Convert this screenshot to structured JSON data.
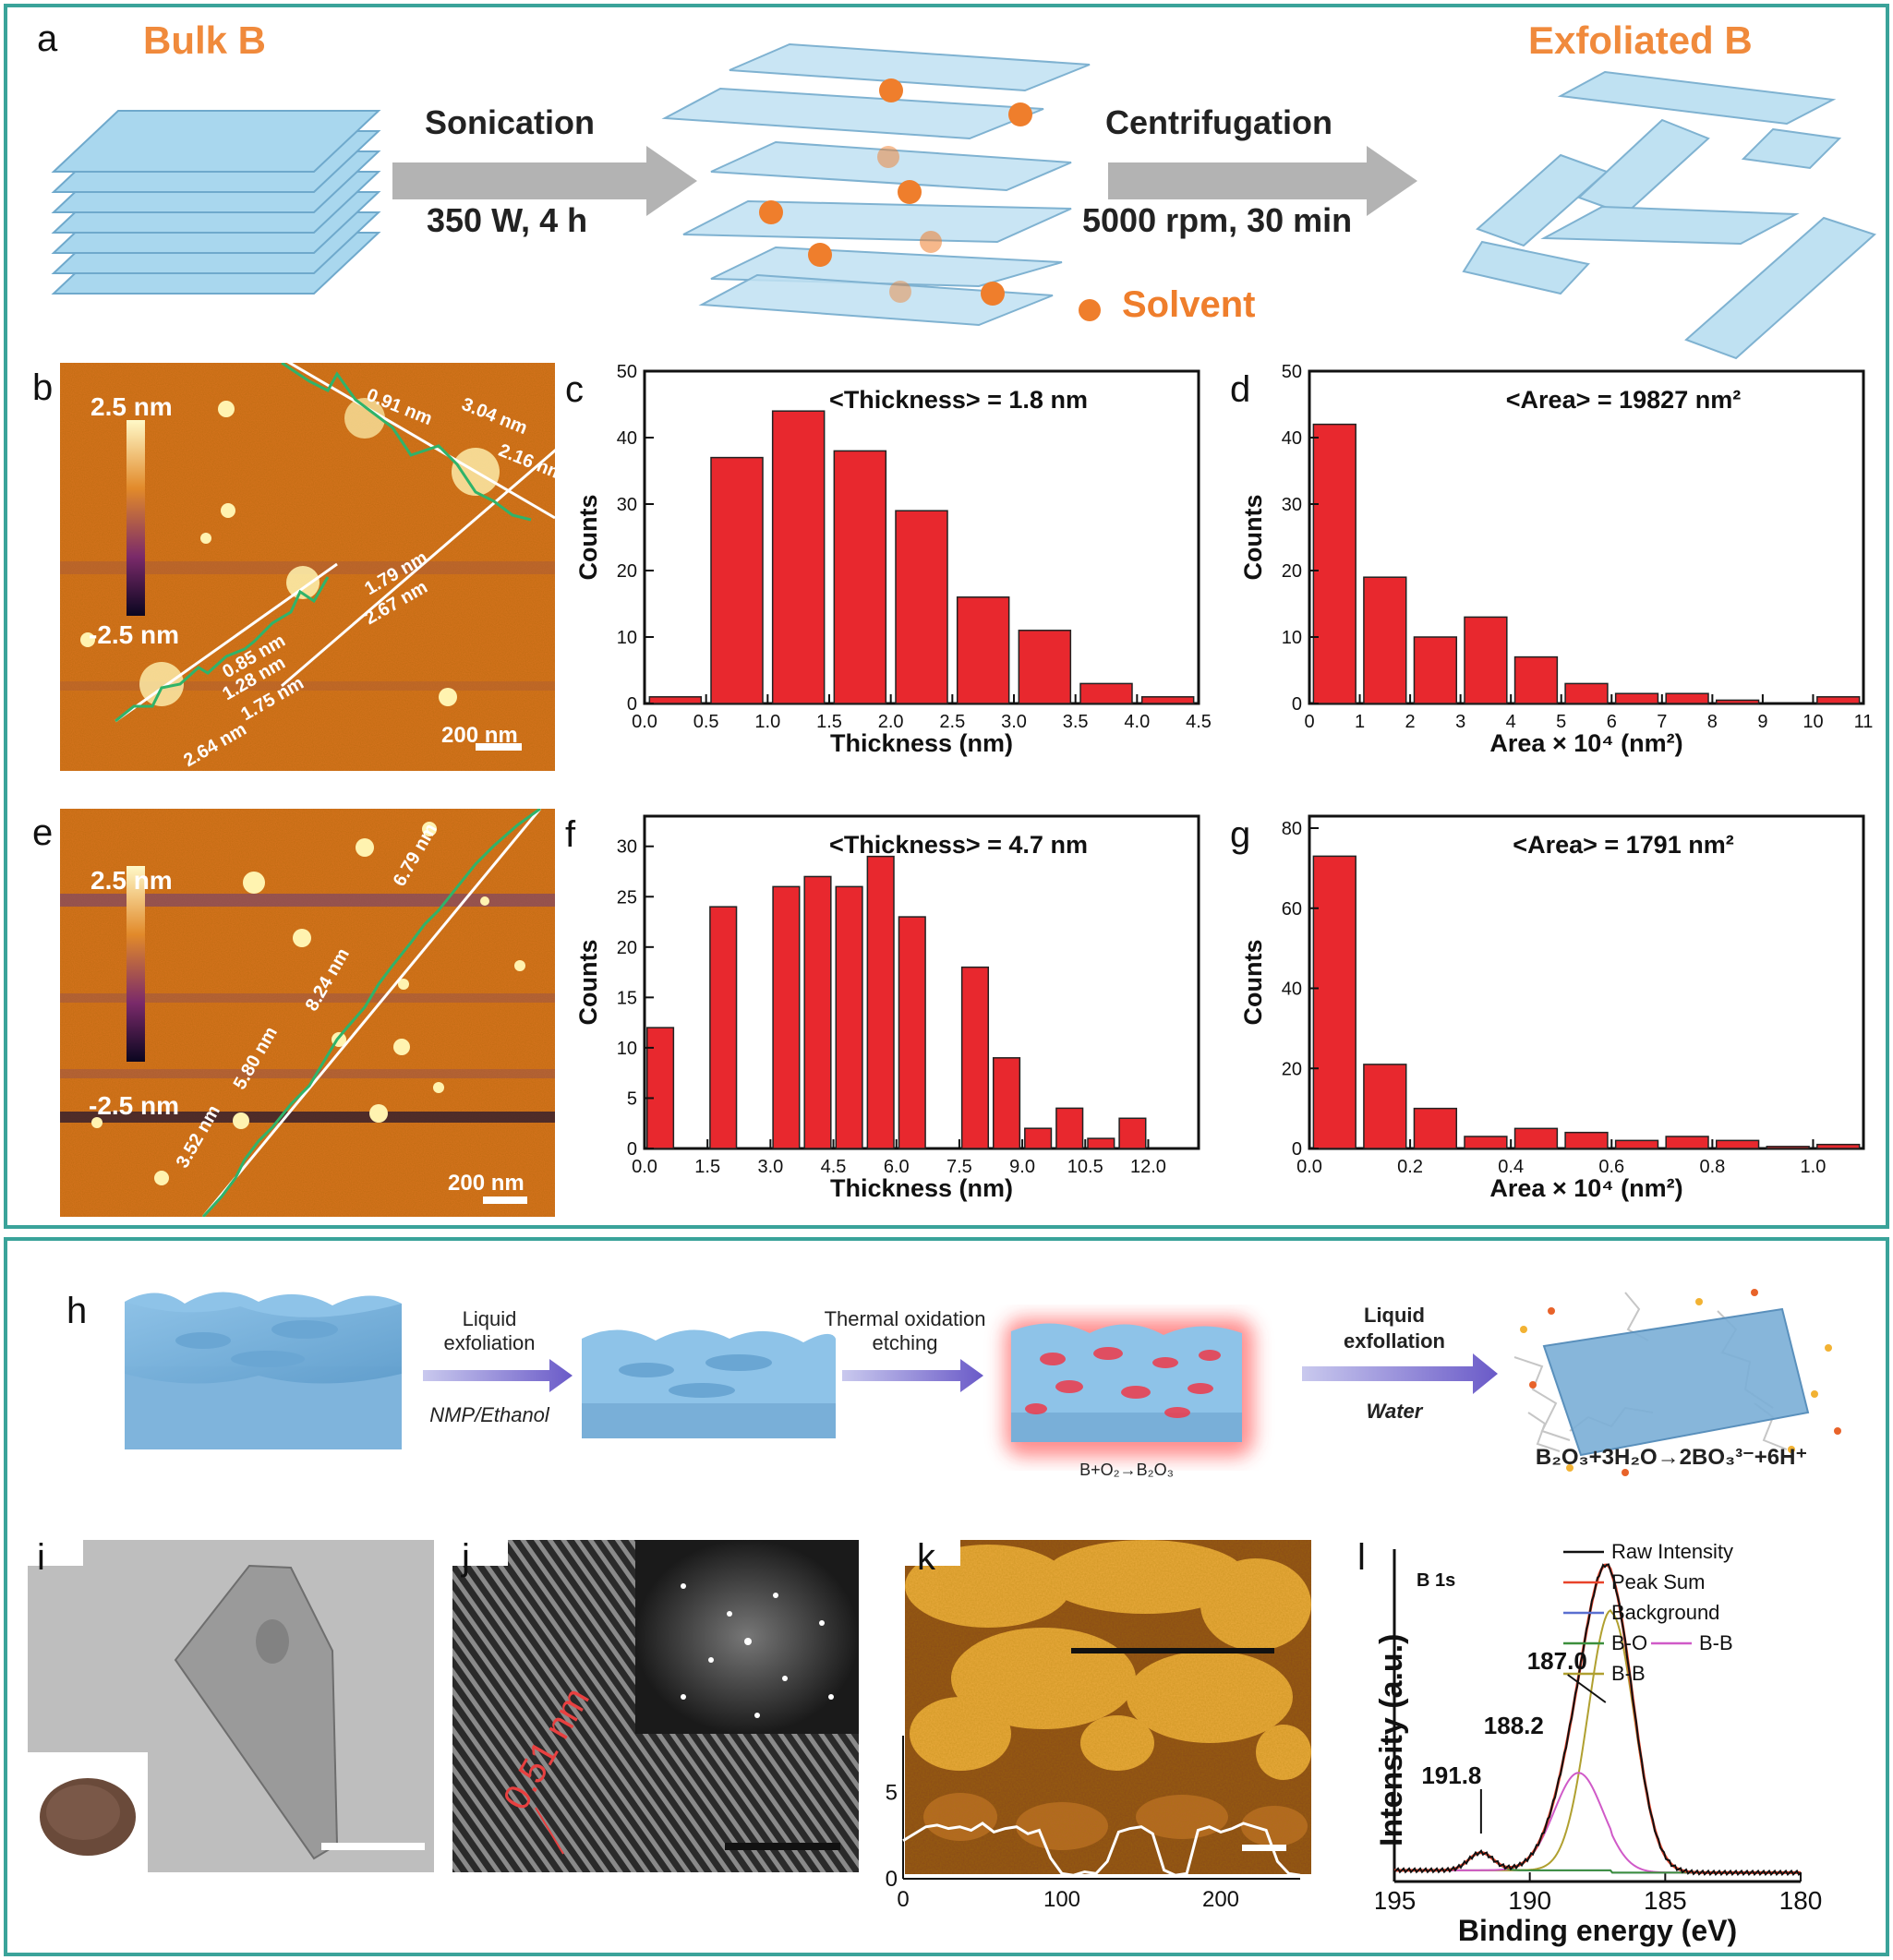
{
  "panel_a": {
    "label": "a",
    "bulk_label": "Bulk B",
    "exfoliated_label": "Exfoliated B",
    "step1_top": "Sonication",
    "step1_bottom": "350 W, 4 h",
    "step2_top": "Centrifugation",
    "step2_bottom": "5000 rpm, 30 min",
    "solvent_label": "Solvent",
    "colors": {
      "sheet": "#a9d7ee",
      "sheet_edge": "#6fa9cc",
      "arrow": "#b3b3b3",
      "dot": "#ef7e2c",
      "title": "#f08a3c"
    }
  },
  "panel_b": {
    "label": "b",
    "scale_top": "2.5 nm",
    "scale_bottom": "-2.5 nm",
    "scalebar": "200 nm",
    "measurements": [
      "0.91 nm",
      "3.04 nm",
      "2.16 nm",
      "1.79 nm",
      "2.67 nm",
      "0.85 nm",
      "1.28 nm",
      "1.75 nm",
      "2.64 nm"
    ]
  },
  "panel_e": {
    "label": "e",
    "scale_top": "2.5 nm",
    "scale_bottom": "-2.5 nm",
    "scalebar": "200 nm",
    "measurements": [
      "6.79 nm",
      "8.24 nm",
      "5.80 nm",
      "3.52 nm"
    ]
  },
  "panel_h": {
    "label": "h",
    "step1_top": "Liquid",
    "step1_top2": "exfoliation",
    "step1_bottom": "NMP/Ethanol",
    "step2_top": "Thermal oxidation",
    "step2_top2": "etching",
    "reaction1": "B+O₂→B₂O₃",
    "step3_top": "Liquid",
    "step3_top2": "exfollation",
    "step3_bottom": "Water",
    "reaction2": "B₂O₃+3H₂O→2BO₃³⁻+6H⁺"
  },
  "panel_i": {
    "label": "i"
  },
  "panel_j": {
    "label": "j",
    "spacing": "0.51 nm"
  },
  "panel_k": {
    "label": "k",
    "y_ticks": [
      "0",
      "5"
    ],
    "x_ticks": [
      "0",
      "100",
      "200"
    ],
    "profile": [
      2.2,
      2.6,
      3.0,
      3.1,
      2.9,
      3.0,
      2.8,
      3.2,
      2.7,
      2.9,
      3.0,
      2.6,
      2.8,
      1.2,
      0.3,
      0.2,
      0.4,
      0.3,
      1.0,
      2.7,
      2.9,
      3.0,
      2.6,
      0.5,
      0.2,
      0.3,
      2.8,
      3.0,
      2.7,
      2.9,
      3.2,
      3.0,
      2.8,
      1.0,
      0.3,
      0.2
    ]
  },
  "chart_data": [
    {
      "id": "c",
      "type": "bar",
      "title": "<Thickness> = 1.8 nm",
      "xlabel": "Thickness (nm)",
      "ylabel": "Counts",
      "x": [
        0.25,
        0.75,
        1.25,
        1.75,
        2.25,
        2.75,
        3.25,
        3.75,
        4.25
      ],
      "values": [
        1,
        37,
        44,
        38,
        29,
        16,
        11,
        3,
        1
      ],
      "xlim": [
        0,
        4.5
      ],
      "ylim": [
        0,
        50
      ],
      "x_ticks": [
        "0.0",
        "0.5",
        "1.0",
        "1.5",
        "2.0",
        "2.5",
        "3.0",
        "3.5",
        "4.0",
        "4.5"
      ],
      "y_ticks": [
        "0",
        "10",
        "20",
        "30",
        "40",
        "50"
      ],
      "color": "#e8282e"
    },
    {
      "id": "d",
      "type": "bar",
      "title": "<Area> = 19827 nm²",
      "xlabel": "Area × 10⁴ (nm²)",
      "ylabel": "Counts",
      "x": [
        0.5,
        1.5,
        2.5,
        3.5,
        4.5,
        5.5,
        6.5,
        7.5,
        8.5,
        9.5,
        10.5
      ],
      "values": [
        42,
        19,
        10,
        13,
        7,
        3,
        1.5,
        1.5,
        0.5,
        0,
        1
      ],
      "xlim": [
        0,
        11
      ],
      "ylim": [
        0,
        50
      ],
      "x_ticks": [
        "0",
        "1",
        "2",
        "3",
        "4",
        "5",
        "6",
        "7",
        "8",
        "9",
        "10",
        "11"
      ],
      "y_ticks": [
        "0",
        "10",
        "20",
        "30",
        "40",
        "50"
      ],
      "color": "#e8282e"
    },
    {
      "id": "f",
      "type": "bar",
      "title": "<Thickness> = 4.7 nm",
      "xlabel": "Thickness (nm)",
      "ylabel": "Counts",
      "x": [
        0.375,
        1.125,
        1.875,
        2.625,
        3.375,
        4.125,
        4.875,
        5.625,
        6.375,
        7.125,
        7.875,
        8.625,
        9.375,
        10.125,
        10.875,
        11.625,
        12.375
      ],
      "values": [
        12,
        0,
        24,
        0,
        26,
        27,
        26,
        29,
        23,
        0,
        18,
        9,
        2,
        4,
        1,
        3,
        0
      ],
      "xlim": [
        0,
        13.2
      ],
      "ylim": [
        0,
        33
      ],
      "x_ticks": [
        "0.0",
        "1.5",
        "3.0",
        "4.5",
        "6.0",
        "7.5",
        "9.0",
        "10.5",
        "12.0"
      ],
      "y_ticks": [
        "0",
        "5",
        "10",
        "15",
        "20",
        "25",
        "30"
      ],
      "color": "#e8282e"
    },
    {
      "id": "g",
      "type": "bar",
      "title": "<Area> = 1791 nm²",
      "xlabel": "Area × 10⁴ (nm²)",
      "ylabel": "Counts",
      "x": [
        0.05,
        0.15,
        0.25,
        0.35,
        0.45,
        0.55,
        0.65,
        0.75,
        0.85,
        0.95,
        1.05
      ],
      "values": [
        73,
        21,
        10,
        3,
        5,
        4,
        2,
        3,
        2,
        0.5,
        1
      ],
      "xlim": [
        0,
        1.1
      ],
      "ylim": [
        0,
        83
      ],
      "x_ticks": [
        "0.0",
        "0.2",
        "0.4",
        "0.6",
        "0.8",
        "1.0"
      ],
      "y_ticks": [
        "0",
        "20",
        "40",
        "60",
        "80"
      ],
      "color": "#e8282e"
    },
    {
      "id": "l",
      "type": "line",
      "title": "B 1s",
      "xlabel": "Binding energy (eV)",
      "ylabel": "Intensity (a.u.)",
      "xlim": [
        195,
        180
      ],
      "x_ticks": [
        "195",
        "190",
        "185",
        "180"
      ],
      "legend": [
        "Raw Intensity",
        "Peak Sum",
        "Background",
        "B-O",
        "B-B",
        "B-B"
      ],
      "legend_colors": [
        "#111111",
        "#e8432a",
        "#5a6fd0",
        "#3c8f3c",
        "#d05ac8",
        "#b0a030"
      ],
      "annotations": [
        "187.0",
        "188.2",
        "191.8"
      ],
      "peaks": [
        {
          "center": 187.0,
          "height": 0.88,
          "width": 0.85,
          "color": "#b0a030"
        },
        {
          "center": 188.2,
          "height": 0.33,
          "width": 0.9,
          "color": "#d05ac8"
        },
        {
          "center": 191.8,
          "height": 0.06,
          "width": 0.45,
          "color": "#3c8f3c"
        }
      ]
    }
  ]
}
